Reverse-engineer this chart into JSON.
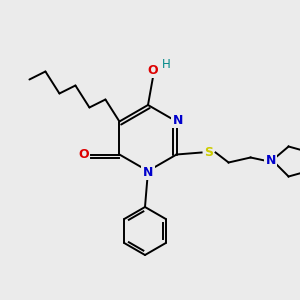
{
  "bg_color": "#ebebeb",
  "atom_colors": {
    "C": "#000000",
    "N": "#0000cc",
    "O": "#dd0000",
    "S": "#cccc00",
    "H": "#008888"
  },
  "bond_color": "#000000",
  "bond_lw": 1.4
}
